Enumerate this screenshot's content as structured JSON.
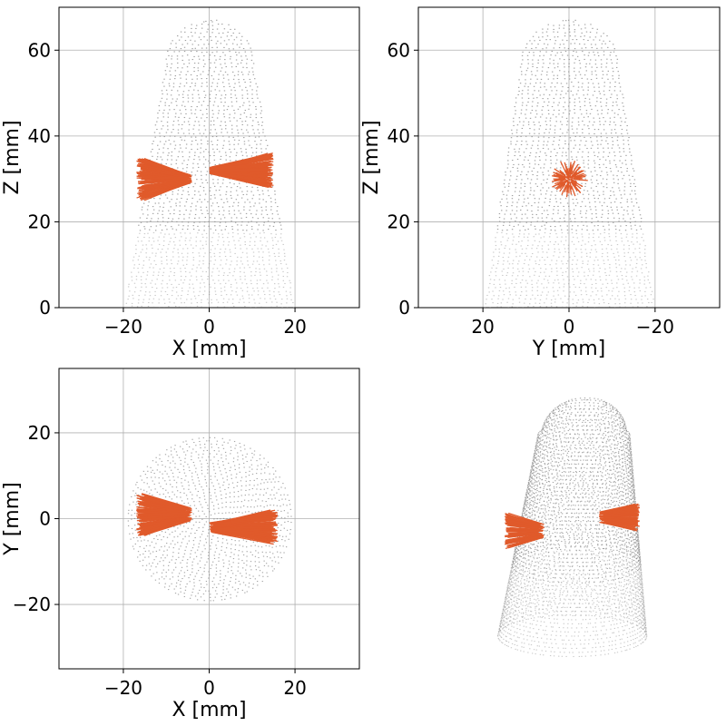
{
  "figure": {
    "point_color": "#888888",
    "arrow_color": "#e05a2b",
    "grid": true
  },
  "chart_data": [
    {
      "type": "scatter",
      "view": "front",
      "xlabel": "X [mm]",
      "ylabel": "Z [mm]",
      "xlim": [
        -35,
        35
      ],
      "ylim": [
        0,
        70
      ],
      "xticks": [
        -20,
        0,
        20
      ],
      "xtick_labels": [
        "−20",
        "0",
        "20"
      ],
      "yticks": [
        0,
        20,
        40,
        60
      ],
      "ytick_labels": [
        "0",
        "20",
        "40",
        "60"
      ],
      "series": [
        {
          "marker": "points",
          "color": "#888888",
          "shape": {
            "base_half_width": 19.5,
            "top_half_width": 10,
            "z_max": 67,
            "cap_center": 0
          }
        },
        {
          "marker": "arrows",
          "color": "#e05a2b",
          "regions": [
            {
              "x": [
                -17,
                -4
              ],
              "z": [
                25,
                35
              ],
              "spread": "left"
            },
            {
              "x": [
                0,
                15
              ],
              "z": [
                28,
                36
              ],
              "spread": "right"
            }
          ]
        }
      ]
    },
    {
      "type": "scatter",
      "view": "side",
      "xlabel": "Y [mm]",
      "ylabel": "Z [mm]",
      "xlim": [
        35,
        -35
      ],
      "ylim": [
        0,
        70
      ],
      "xticks": [
        20,
        0,
        -20
      ],
      "xtick_labels": [
        "20",
        "0",
        "−20"
      ],
      "yticks": [
        0,
        20,
        40,
        60
      ],
      "ytick_labels": [
        "0",
        "20",
        "40",
        "60"
      ],
      "series": [
        {
          "marker": "points",
          "color": "#888888",
          "shape": {
            "base_half_width": 19.5,
            "top_half_width": 11,
            "z_max": 67,
            "cap_center": 0
          }
        },
        {
          "marker": "arrows",
          "color": "#e05a2b",
          "regions": [
            {
              "y": [
                -5,
                5
              ],
              "z": [
                25,
                35
              ],
              "spread": "radial"
            }
          ]
        }
      ]
    },
    {
      "type": "scatter",
      "view": "top",
      "xlabel": "X [mm]",
      "ylabel": "Y [mm]",
      "xlim": [
        -35,
        35
      ],
      "ylim": [
        -35,
        35
      ],
      "xticks": [
        -20,
        0,
        20
      ],
      "xtick_labels": [
        "−20",
        "0",
        "20"
      ],
      "yticks": [
        -20,
        0,
        20
      ],
      "ytick_labels": [
        "−20",
        "0",
        "20"
      ],
      "series": [
        {
          "marker": "points",
          "color": "#888888",
          "shape": {
            "radius": 19
          }
        },
        {
          "marker": "arrows",
          "color": "#e05a2b",
          "regions": [
            {
              "x": [
                -17,
                -4
              ],
              "y": [
                -4,
                6
              ],
              "spread": "left"
            },
            {
              "x": [
                0,
                16
              ],
              "y": [
                -6,
                2
              ],
              "spread": "right"
            }
          ]
        }
      ]
    },
    {
      "type": "scatter",
      "view": "3d",
      "series": [
        {
          "marker": "points",
          "color": "#888888"
        },
        {
          "marker": "arrows",
          "color": "#e05a2b"
        }
      ]
    }
  ]
}
